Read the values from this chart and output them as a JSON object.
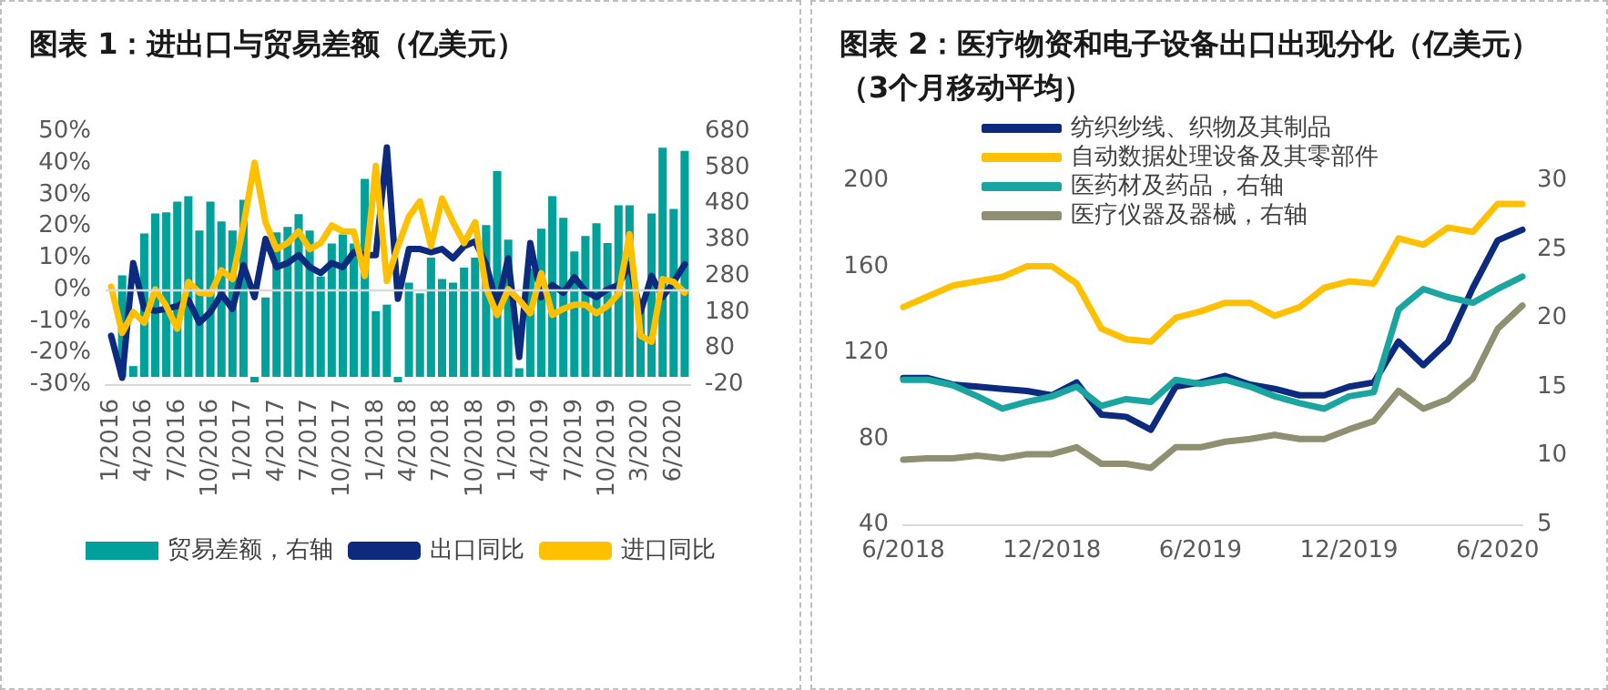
{
  "chart_data": [
    {
      "type": "bar",
      "title": "图表 1：进出口与贸易差额（亿美元）",
      "categories": [
        "1/2016",
        null,
        null,
        "4/2016",
        null,
        null,
        "7/2016",
        null,
        null,
        "10/2016",
        null,
        null,
        "1/2017",
        null,
        null,
        "4/2017",
        null,
        null,
        "7/2017",
        null,
        null,
        "10/2017",
        null,
        null,
        "1/2018",
        null,
        null,
        "4/2018",
        null,
        null,
        "7/2018",
        null,
        null,
        "10/2018",
        null,
        null,
        "1/2019",
        null,
        null,
        "4/2019",
        null,
        null,
        "7/2019",
        null,
        null,
        "10/2019",
        null,
        null,
        "3/2020",
        null,
        null,
        "6/2020",
        null
      ],
      "series": [
        {
          "name": "贸易差额，右轴",
          "axis": "y2",
          "color": "#00a19a",
          "values": [
            null,
            281,
            30,
            397,
            452,
            455,
            485,
            500,
            405,
            485,
            430,
            405,
            490,
            -15,
            220,
            400,
            415,
            450,
            405,
            278,
            369,
            394,
            369,
            548,
            182,
            200,
            -15,
            261,
            231,
            330,
            271,
            261,
            302,
            330,
            420,
            569,
            380,
            24,
            300,
            410,
            500,
            440,
            347,
            390,
            425,
            370,
            475,
            475,
            200,
            452,
            634,
            465,
            625
          ]
        },
        {
          "name": "出口同比",
          "type": "line",
          "color": "#0d2b7e",
          "values": [
            -14.7,
            -28,
            8.3,
            -6.2,
            -6.8,
            -6.2,
            -5.3,
            -3.4,
            -10.6,
            -7.2,
            -1.5,
            -6.2,
            7.6,
            -2.5,
            15.9,
            7,
            8.3,
            10.8,
            7,
            5.1,
            8.3,
            7,
            11.7,
            10.8,
            10.8,
            44.8,
            -3,
            12.7,
            12.7,
            11.7,
            12.7,
            9.8,
            13.6,
            15.1,
            7.9,
            -5.3,
            9.8,
            -21.4,
            14.6,
            -2.5,
            1.3,
            -1.1,
            3.8,
            -0.6,
            -2.5,
            0,
            1.3,
            7.9,
            -7.2,
            4.2,
            -2.5,
            2.3,
            7.9
          ]
        },
        {
          "name": "进口同比",
          "type": "line",
          "color": "#ffc000",
          "values": [
            0.8,
            -13.8,
            -7.2,
            -10.6,
            0,
            -5.3,
            -12.5,
            2.3,
            -1.1,
            -1.5,
            6,
            3.2,
            20.2,
            40,
            21.2,
            12.7,
            14.6,
            18.3,
            12.7,
            14.6,
            20.2,
            18.3,
            18.3,
            4.2,
            39,
            2.6,
            13.6,
            23,
            27.8,
            13.6,
            28.7,
            21.2,
            14.6,
            21.2,
            0.4,
            -8.1,
            0,
            -3.4,
            -7.6,
            5.1,
            -8.1,
            -6.2,
            -4.9,
            -4.9,
            -7.6,
            -5.3,
            -1.5,
            17.4,
            -14.7,
            -16.6,
            3.2,
            2.3,
            -1.1
          ]
        }
      ],
      "ylim": [
        -30,
        50
      ],
      "yticks": [
        {
          "value": -30,
          "label": "-30%"
        },
        {
          "value": -20,
          "label": "-20%"
        },
        {
          "value": -10,
          "label": "-10%"
        },
        {
          "value": 0,
          "label": "0%"
        },
        {
          "value": 10,
          "label": "10%"
        },
        {
          "value": 20,
          "label": "20%"
        },
        {
          "value": 30,
          "label": "30%"
        },
        {
          "value": 40,
          "label": "40%"
        },
        {
          "value": 50,
          "label": "50%"
        }
      ],
      "y2lim": [
        -20,
        680
      ],
      "y2ticks": [
        -20,
        80,
        180,
        280,
        380,
        480,
        580,
        680
      ],
      "ref_lines": [
        {
          "axis": "y",
          "value": 0,
          "color": "#d9d9d9"
        }
      ],
      "grid": false,
      "legend": "bottom",
      "marker": "none",
      "line_style": "solid"
    },
    {
      "type": "line",
      "title": "图表 2：医疗物资和电子设备出口出现分化（亿美元）（3个月移动平均）",
      "categories": [
        "6/2018",
        null,
        null,
        null,
        null,
        null,
        "12/2018",
        null,
        null,
        null,
        null,
        null,
        "6/2019",
        null,
        null,
        null,
        null,
        null,
        "12/2019",
        null,
        null,
        null,
        null,
        null,
        "6/2020",
        null
      ],
      "series": [
        {
          "name": "纺织纱线、织物及其制品",
          "color": "#0d2b7e",
          "values": [
            108,
            108,
            105,
            104,
            103,
            102,
            100,
            106,
            91,
            90,
            84,
            104,
            106,
            109,
            105,
            103,
            100,
            100,
            104,
            106,
            125,
            114,
            125,
            150,
            172,
            177
          ]
        },
        {
          "name": "自动数据处理设备及其零部件",
          "color": "#ffc000",
          "values": [
            141,
            146,
            151,
            153,
            155,
            160,
            160,
            152,
            131,
            126,
            125,
            136,
            139,
            143,
            143,
            137,
            141,
            150,
            153,
            152,
            173,
            170,
            178,
            176,
            189,
            189
          ]
        },
        {
          "name": "医药材及药品，右轴",
          "axis": "y2",
          "color": "#1aa5a0",
          "values": [
            15.5,
            15.5,
            15.1,
            14.3,
            13.4,
            13.9,
            14.3,
            15,
            13.6,
            14.1,
            13.9,
            15.5,
            15.2,
            15.5,
            15,
            14.3,
            13.8,
            13.4,
            14.3,
            14.6,
            20.6,
            22.1,
            21.5,
            21.1,
            22.1,
            23
          ]
        },
        {
          "name": "医疗仪器及器械，右轴",
          "axis": "y2",
          "color": "#8f8f72",
          "values": [
            9.7,
            9.8,
            9.8,
            10,
            9.8,
            10.1,
            10.1,
            10.6,
            9.4,
            9.4,
            9.1,
            10.6,
            10.6,
            11,
            11.2,
            11.5,
            11.2,
            11.2,
            11.9,
            12.5,
            14.7,
            13.4,
            14.1,
            15.6,
            19.2,
            20.9
          ]
        }
      ],
      "ylim": [
        40,
        200
      ],
      "yticks": [
        40,
        80,
        120,
        160,
        200
      ],
      "y2lim": [
        5,
        30
      ],
      "y2ticks": [
        5,
        10,
        15,
        20,
        25,
        30
      ],
      "grid": false,
      "legend": "top left",
      "marker": "none",
      "line_style": "solid"
    }
  ]
}
